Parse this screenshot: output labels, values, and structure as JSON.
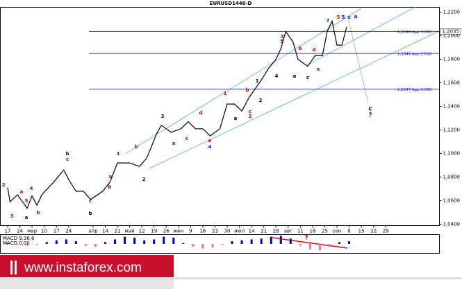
{
  "chart_data": [
    {
      "type": "line",
      "title": "EURUSD1440-D",
      "color": "#000000",
      "x": [
        0,
        1,
        4,
        8,
        10,
        12,
        14,
        19,
        23,
        25,
        28,
        31,
        34,
        39,
        42,
        45,
        50,
        54,
        57,
        61,
        63,
        67,
        71,
        74,
        77,
        80,
        83,
        87,
        90,
        93,
        96,
        99,
        101,
        104,
        107,
        110,
        112,
        114,
        117,
        119,
        123,
        126,
        129,
        131,
        133,
        135,
        137,
        139
      ],
      "values": [
        1.071,
        1.059,
        1.065,
        1.0535,
        1.064,
        1.056,
        1.065,
        1.076,
        1.086,
        1.078,
        1.068,
        1.068,
        1.061,
        1.068,
        1.076,
        1.092,
        1.092,
        1.089,
        1.096,
        1.1165,
        1.124,
        1.118,
        1.121,
        1.127,
        1.121,
        1.121,
        1.115,
        1.121,
        1.142,
        1.142,
        1.136,
        1.1476,
        1.1535,
        1.1624,
        1.1724,
        1.18,
        1.189,
        1.2035,
        1.1947,
        1.18,
        1.174,
        1.183,
        1.183,
        1.2035,
        1.2124,
        1.192,
        1.192,
        1.2076
      ],
      "xlim": [
        -3,
        177
      ],
      "xticks": [
        {
          "value": 0,
          "label": "17"
        },
        {
          "value": 5,
          "label": "24"
        },
        {
          "value": 10,
          "label": "мар"
        },
        {
          "value": 15,
          "label": "10"
        },
        {
          "value": 20,
          "label": "17"
        },
        {
          "value": 25,
          "label": "24"
        },
        {
          "value": 35,
          "label": "апр"
        },
        {
          "value": 40,
          "label": "14"
        },
        {
          "value": 45,
          "label": "21"
        },
        {
          "value": 50,
          "label": "май"
        },
        {
          "value": 55,
          "label": "12"
        },
        {
          "value": 60,
          "label": "19"
        },
        {
          "value": 65,
          "label": "26"
        },
        {
          "value": 70,
          "label": "июн"
        },
        {
          "value": 75,
          "label": "9"
        },
        {
          "value": 80,
          "label": "16"
        },
        {
          "value": 85,
          "label": "23"
        },
        {
          "value": 90,
          "label": "30"
        },
        {
          "value": 95,
          "label": "июл"
        },
        {
          "value": 100,
          "label": "14"
        },
        {
          "value": 105,
          "label": "21"
        },
        {
          "value": 110,
          "label": "28"
        },
        {
          "value": 115,
          "label": "авг"
        },
        {
          "value": 120,
          "label": "11"
        },
        {
          "value": 125,
          "label": "18"
        },
        {
          "value": 130,
          "label": "25"
        },
        {
          "value": 135,
          "label": "сен"
        },
        {
          "value": 140,
          "label": "8"
        },
        {
          "value": 145,
          "label": "15"
        },
        {
          "value": 150,
          "label": "22"
        },
        {
          "value": 155,
          "label": "29"
        }
      ],
      "ylim": [
        1.0388,
        1.2241
      ],
      "yticks": [
        {
          "value": 1.04,
          "label": "1,0400"
        },
        {
          "value": 1.06,
          "label": "1,0600"
        },
        {
          "value": 1.08,
          "label": "1,0800"
        },
        {
          "value": 1.1,
          "label": "1,1000"
        },
        {
          "value": 1.12,
          "label": "1,1200"
        },
        {
          "value": 1.14,
          "label": "1,1400"
        },
        {
          "value": 1.16,
          "label": "1,1600"
        },
        {
          "value": 1.18,
          "label": "1,1800"
        },
        {
          "value": 1.2,
          "label": "1,2000"
        },
        {
          "value": 1.22,
          "label": "1,2200"
        }
      ],
      "current_price": {
        "value": 1.2035,
        "label": "1,2035"
      },
      "levels": [
        {
          "value": 1.2036,
          "label": "1,2036 App 3.000",
          "color": "#0000cc"
        },
        {
          "value": 1.1849,
          "label": "1,1849 App 2.618",
          "color": "#0000cc"
        },
        {
          "value": 1.1547,
          "label": "1,1547 App 2.000",
          "color": "#0000cc"
        }
      ],
      "annotations": [
        {
          "text": "2",
          "color": "#cc0000"
        },
        {
          "text": "3",
          "color": "#cc0000"
        },
        {
          "text": "a",
          "color": "#cc0000"
        },
        {
          "text": "4",
          "color": "#cc0000"
        },
        {
          "text": "5",
          "color": "#cc0000"
        },
        {
          "text": "a",
          "color": "#0000cc"
        },
        {
          "text": "b",
          "color": "#cc0000"
        },
        {
          "text": "b",
          "color": "#0000cc"
        },
        {
          "text": "c",
          "color": "#cc0000"
        },
        {
          "text": "c",
          "color": "#0000cc"
        },
        {
          "text": "b",
          "color": "#000000"
        },
        {
          "text": "a",
          "color": "#cc0000"
        },
        {
          "text": "b",
          "color": "#cc0000"
        },
        {
          "text": "1",
          "color": "#0000cc"
        },
        {
          "text": "2",
          "color": "#0000cc"
        },
        {
          "text": "3",
          "color": "#0000cc"
        },
        {
          "text": "b",
          "color": "#cc0000"
        },
        {
          "text": "a",
          "color": "#cc0000"
        },
        {
          "text": "c",
          "color": "#cc0000"
        },
        {
          "text": "d",
          "color": "#cc0000"
        },
        {
          "text": "e",
          "color": "#cc0000"
        },
        {
          "text": "4",
          "color": "#0000cc"
        },
        {
          "text": "1",
          "color": "#cc0000"
        },
        {
          "text": "a",
          "color": "#000000"
        },
        {
          "text": "b",
          "color": "#cc0000"
        },
        {
          "text": "c",
          "color": "#cc0000"
        },
        {
          "text": "2",
          "color": "#cc0000"
        },
        {
          "text": "1",
          "color": "#000000"
        },
        {
          "text": "2",
          "color": "#000000"
        },
        {
          "text": "3",
          "color": "#cc0000"
        },
        {
          "text": "5",
          "color": "#000000"
        },
        {
          "text": "4",
          "color": "#000000"
        },
        {
          "text": "a",
          "color": "#000000"
        },
        {
          "text": "b",
          "color": "#cc0000"
        },
        {
          "text": "c",
          "color": "#000000"
        },
        {
          "text": "d",
          "color": "#cc0000"
        },
        {
          "text": "e",
          "color": "#cc0000"
        },
        {
          "text": "?",
          "color": "#000000"
        },
        {
          "text": "5",
          "color": "#cc0000"
        },
        {
          "text": "5",
          "color": "#0000cc"
        },
        {
          "text": "c",
          "color": "#0000cc"
        },
        {
          "text": "a",
          "color": "#0000cc"
        },
        {
          "text": "c",
          "color": "#0000cc"
        },
        {
          "text": "?",
          "color": "#cc0000"
        }
      ]
    },
    {
      "type": "bar",
      "title": "MACD 9,36,6",
      "subtitle": "MACD 0,00",
      "color": "#0000cc",
      "negative_color": "#ff66cc",
      "x": [
        0,
        4,
        8,
        12,
        16,
        20,
        24,
        28,
        32,
        36,
        40,
        44,
        48,
        52,
        56,
        60,
        64,
        68,
        72,
        76,
        80,
        84,
        88,
        92,
        96,
        100,
        104,
        108,
        112,
        116,
        120,
        124,
        128,
        132,
        136,
        140
      ],
      "values": [
        0.001,
        -0.001,
        -0.002,
        0.0,
        0.002,
        0.004,
        0.005,
        0.003,
        -0.002,
        -0.003,
        0.002,
        0.005,
        0.008,
        0.007,
        0.004,
        0.005,
        0.008,
        0.007,
        0.001,
        -0.003,
        -0.005,
        -0.004,
        -0.001,
        0.003,
        0.004,
        0.005,
        0.006,
        0.008,
        0.009,
        0.006,
        -0.002,
        -0.006,
        -0.007,
        -0.003,
        0.002,
        0.003
      ],
      "xlim": [
        -3,
        177
      ],
      "ylim": [
        -0.01,
        0.01
      ],
      "annotations": [
        {
          "text": "?",
          "color": "#cc0000"
        }
      ]
    }
  ],
  "banner": {
    "text": "www.instaforex.com"
  }
}
